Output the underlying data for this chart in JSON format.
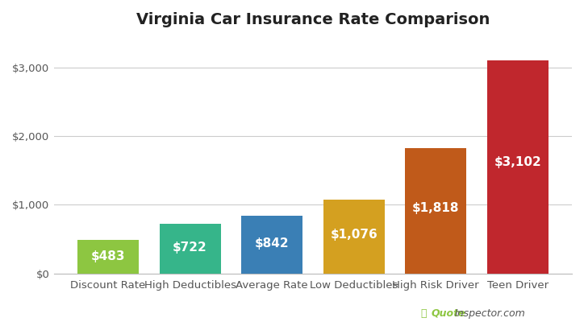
{
  "title": "Virginia Car Insurance Rate Comparison",
  "categories": [
    "Discount Rate",
    "High Deductibles",
    "Average Rate",
    "Low Deductibles",
    "High Risk Driver",
    "Teen Driver"
  ],
  "values": [
    483,
    722,
    842,
    1076,
    1818,
    3102
  ],
  "bar_colors": [
    "#8DC641",
    "#36B58A",
    "#3A7FB5",
    "#D4A020",
    "#C05A1A",
    "#C0272D"
  ],
  "labels": [
    "$483",
    "$722",
    "$842",
    "$1,076",
    "$1,818",
    "$3,102"
  ],
  "ylim": [
    0,
    3400
  ],
  "yticks": [
    0,
    1000,
    2000,
    3000
  ],
  "ytick_labels": [
    "$0",
    "$1,000",
    "$2,000",
    "$3,000"
  ],
  "title_fontsize": 14,
  "label_fontsize": 11,
  "tick_fontsize": 9.5,
  "background_color": "#ffffff",
  "grid_color": "#cccccc",
  "watermark_color_quote": "#8DC641",
  "watermark_color_inspector": "#555555"
}
